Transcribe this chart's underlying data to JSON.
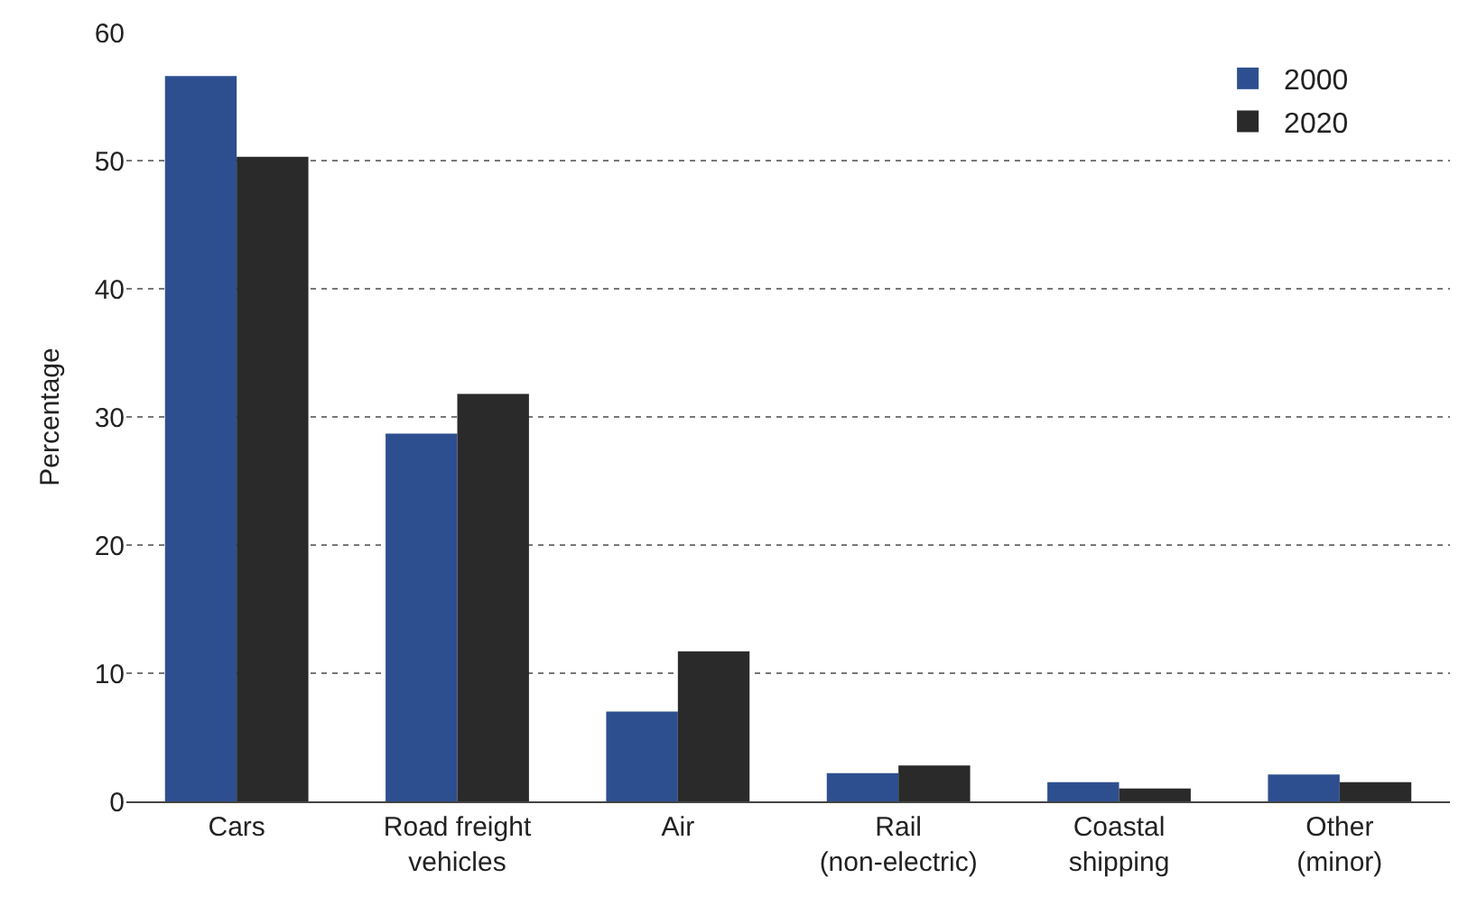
{
  "chart_data": {
    "type": "bar",
    "ylabel": "Percentage",
    "categories": [
      "Cars",
      "Road freight\nvehicles",
      "Air",
      "Rail\n(non-electric)",
      "Coastal\nshipping",
      "Other\n(minor)"
    ],
    "series": [
      {
        "name": "2000",
        "color": "#2e4f8f",
        "values": [
          56.6,
          28.7,
          7.0,
          2.2,
          1.5,
          2.1
        ]
      },
      {
        "name": "2020",
        "color": "#2a2a2a",
        "values": [
          50.3,
          31.8,
          11.7,
          2.8,
          1.0,
          1.5
        ]
      }
    ],
    "ylim": [
      0,
      60
    ],
    "yticks": [
      0,
      10,
      20,
      30,
      40,
      50,
      60
    ],
    "grid": "y",
    "legend": "top right"
  }
}
